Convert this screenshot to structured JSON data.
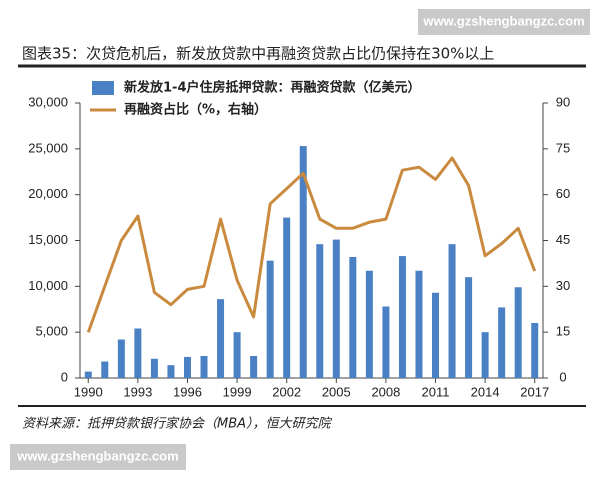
{
  "chart_data": {
    "type": "bar_line",
    "title": "图表35：次贷危机后，新发放贷款中再融资贷款占比仍保持在30%以上",
    "source": "资料来源：抵押贷款银行家协会（MBA），恒大研究院",
    "watermark": "www.gzshengbangzc.com",
    "categories": [
      "1990",
      null,
      null,
      "1993",
      null,
      null,
      "1996",
      null,
      null,
      "1999",
      null,
      null,
      "2002",
      null,
      null,
      "2005",
      null,
      null,
      "2008",
      null,
      null,
      "2011",
      null,
      null,
      "2014",
      null,
      null,
      "2017"
    ],
    "series": [
      {
        "name": "新发放1-4户住房抵押贷款：再融资贷款（亿美元）",
        "color": "#4a80c4",
        "type": "bar",
        "values": [
          700,
          1800,
          4200,
          5400,
          2100,
          1400,
          2300,
          2400,
          8600,
          5000,
          2400,
          12800,
          17500,
          25300,
          14600,
          15100,
          13200,
          11700,
          7800,
          13300,
          11700,
          9300,
          14600,
          11000,
          5000,
          7700,
          9900,
          6000
        ]
      },
      {
        "name": "再融资占比（%，右轴）",
        "color": "#c98a3e",
        "type": "line",
        "axis": "y2",
        "values": [
          15,
          30,
          45,
          53,
          28,
          24,
          29,
          30,
          52,
          32,
          20,
          57,
          62,
          67,
          52,
          49,
          49,
          51,
          52,
          68,
          69,
          65,
          72,
          63,
          40,
          44,
          49,
          35
        ]
      }
    ],
    "ylim": [
      0,
      30000
    ],
    "yticks": [
      0,
      {
        "value": 5000,
        "label": "5,000"
      },
      {
        "value": 10000,
        "label": "10,000"
      },
      {
        "value": 15000,
        "label": "15,000"
      },
      {
        "value": 20000,
        "label": "20,000"
      },
      {
        "value": 25000,
        "label": "25,000"
      },
      {
        "value": 30000,
        "label": "30,000"
      }
    ],
    "y2lim": [
      0,
      90
    ],
    "y2ticks": [
      0,
      15,
      30,
      45,
      60,
      75,
      90
    ],
    "grid": false
  }
}
